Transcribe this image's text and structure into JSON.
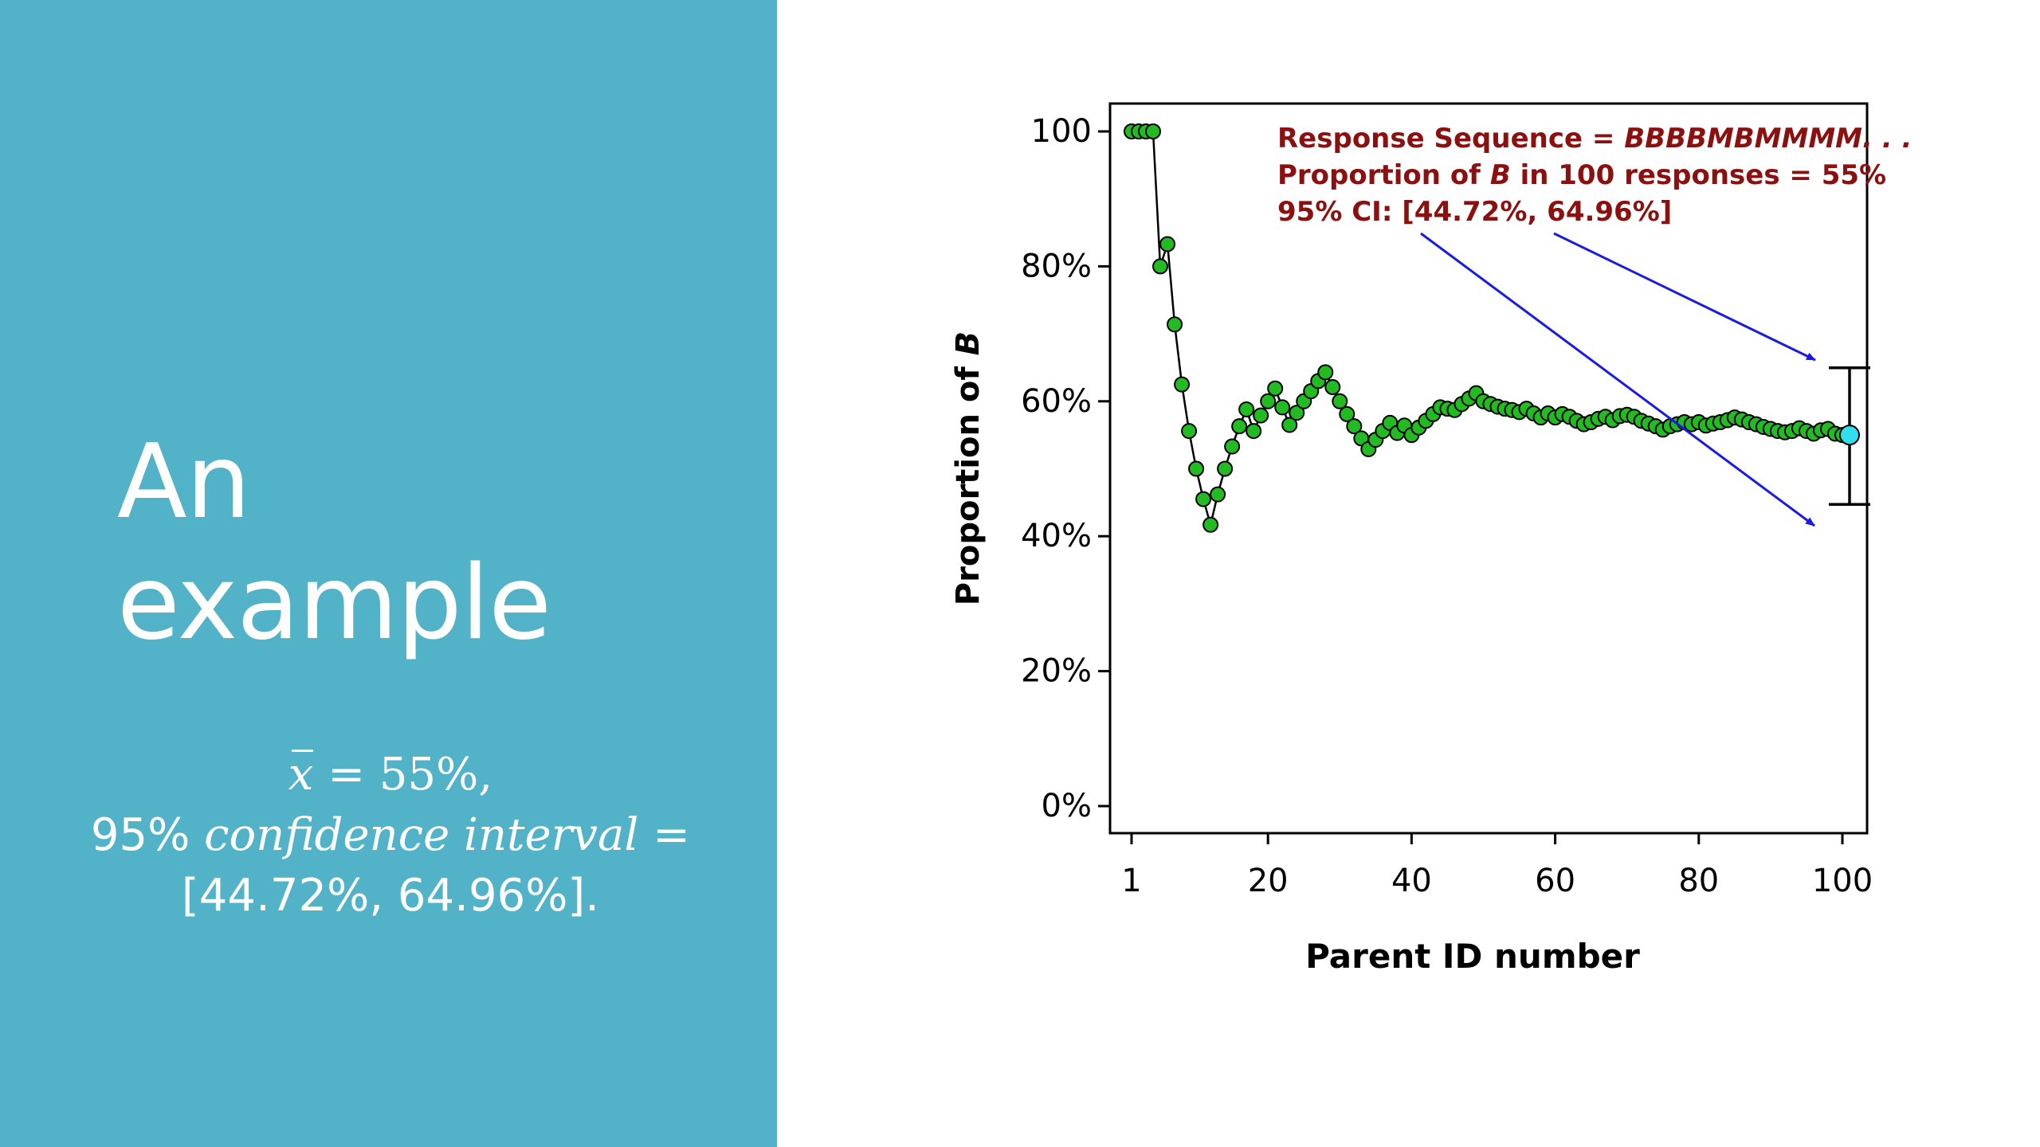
{
  "slide": {
    "title_line1": "An",
    "title_line2": "example",
    "formula": {
      "xbar": "x",
      "eq1": " = 55%,",
      "line2_prefix": "95% ",
      "line2_text": "confidence interval",
      "line2_suffix": " =",
      "line3": "[44.72%, 64.96%]."
    }
  },
  "colors": {
    "left_panel": "#52B3C8",
    "marker": "#22BB22",
    "marker_last": "#33DDEE",
    "annotation": "#8B1010",
    "arrow": "#1A1AE6"
  },
  "chart_data": {
    "type": "line",
    "xlabel": "Parent ID number",
    "ylabel_prefix": "Proportion of ",
    "ylabel_var": "B",
    "xlim": [
      1,
      100
    ],
    "ylim": [
      0,
      100
    ],
    "x_ticks": [
      1,
      20,
      40,
      60,
      80,
      100
    ],
    "x_tick_labels": [
      "1",
      "20",
      "40",
      "60",
      "80",
      "100"
    ],
    "y_ticks": [
      0,
      20,
      40,
      60,
      80,
      100
    ],
    "y_tick_labels": [
      "0%",
      "20%",
      "40%",
      "60%",
      "80%",
      "100"
    ],
    "annotations": {
      "line1_prefix": "Response Sequence = ",
      "line1_seq": "BBBBMBMMMM. . .",
      "line2_a": "Proportion of ",
      "line2_var": "B",
      "line2_b": " in 100 responses = 55%",
      "line3": "95% CI: [44.72%, 64.96%]"
    },
    "confidence_interval": {
      "x": 101,
      "lower": 44.72,
      "upper": 64.96,
      "estimate": 55
    },
    "series": [
      {
        "x": [
          1,
          2,
          3,
          4,
          5,
          6,
          7,
          8,
          9,
          10,
          11,
          12,
          13,
          14,
          15,
          16,
          17,
          18,
          19,
          20,
          21,
          22,
          23,
          24,
          25,
          26,
          27,
          28,
          29,
          30,
          31,
          32,
          33,
          34,
          35,
          36,
          37,
          38,
          39,
          40,
          41,
          42,
          43,
          44,
          45,
          46,
          47,
          48,
          49,
          50,
          51,
          52,
          53,
          54,
          55,
          56,
          57,
          58,
          59,
          60,
          61,
          62,
          63,
          64,
          65,
          66,
          67,
          68,
          69,
          70,
          71,
          72,
          73,
          74,
          75,
          76,
          77,
          78,
          79,
          80,
          81,
          82,
          83,
          84,
          85,
          86,
          87,
          88,
          89,
          90,
          91,
          92,
          93,
          94,
          95,
          96,
          97,
          98,
          99,
          100
        ],
        "y": [
          100,
          100,
          100,
          100,
          80,
          83.3,
          71.4,
          62.5,
          55.6,
          50,
          45.5,
          41.7,
          46.2,
          50,
          53.3,
          56.3,
          58.8,
          55.6,
          57.9,
          60,
          61.9,
          59.1,
          56.5,
          58.3,
          60,
          61.5,
          63,
          64.3,
          62.1,
          60,
          58.1,
          56.3,
          54.5,
          52.9,
          54.3,
          55.6,
          56.8,
          55.3,
          56.4,
          55,
          56.1,
          57.1,
          58.1,
          59.1,
          58.9,
          58.7,
          59.6,
          60.4,
          61.2,
          60,
          59.6,
          59.2,
          58.9,
          58.7,
          58.4,
          58.9,
          58.2,
          57.6,
          58.2,
          57.6,
          58.1,
          57.7,
          57.1,
          56.6,
          56.9,
          57.4,
          57.7,
          57.2,
          57.8,
          58,
          57.7,
          57.1,
          56.7,
          56.3,
          55.8,
          56.3,
          56.6,
          56.9,
          56.6,
          56.9,
          56.4,
          56.7,
          56.9,
          57.2,
          57.6,
          57.3,
          56.9,
          56.6,
          56.2,
          55.9,
          55.6,
          55.4,
          55.6,
          56,
          55.6,
          55.2,
          55.7,
          55.9,
          55.2,
          55
        ]
      }
    ]
  }
}
